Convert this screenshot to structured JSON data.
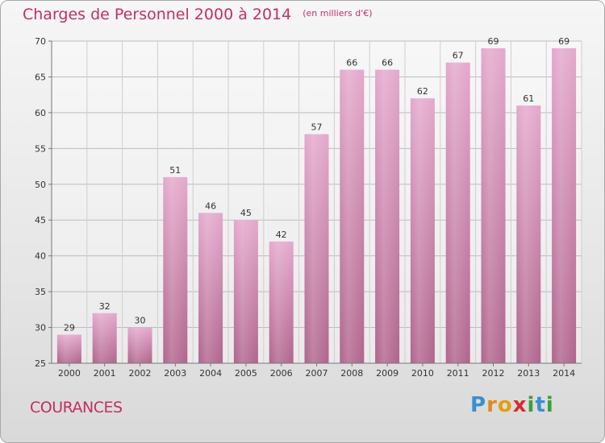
{
  "chart_data": {
    "type": "bar",
    "title": "Charges de Personnel 2000 à 2014",
    "subtitle": "(en milliers d'€)",
    "categories": [
      "2000",
      "2001",
      "2002",
      "2003",
      "2004",
      "2005",
      "2006",
      "2007",
      "2008",
      "2009",
      "2010",
      "2011",
      "2012",
      "2013",
      "2014"
    ],
    "values": [
      29,
      32,
      30,
      51,
      46,
      45,
      42,
      57,
      66,
      66,
      62,
      67,
      69,
      61,
      69
    ],
    "ylim": [
      25,
      70
    ],
    "yticks": [
      25,
      30,
      35,
      40,
      45,
      50,
      55,
      60,
      65,
      70
    ],
    "grid": true,
    "bar_color": "#d98bb4"
  },
  "commune": "COURANCES",
  "logo": {
    "letters": [
      "P",
      "r",
      "o",
      "x",
      "i",
      "t",
      "i"
    ]
  }
}
